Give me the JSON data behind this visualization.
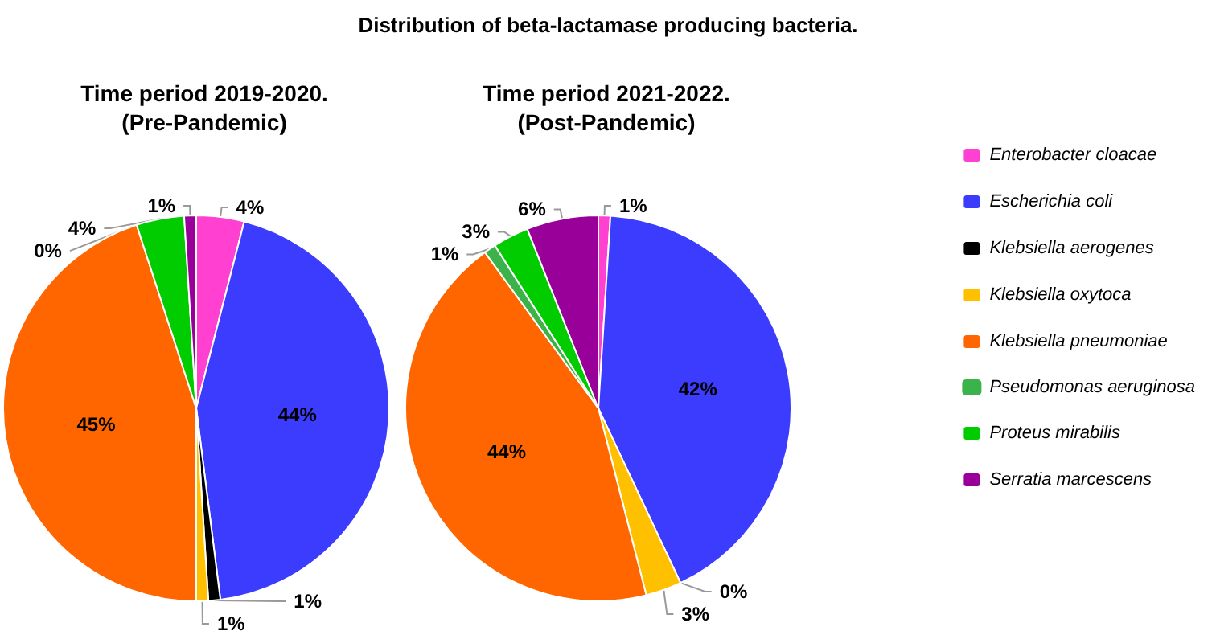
{
  "chart_data": {
    "type": "pie",
    "title": "Distribution of beta-lactamase producing bacteria.",
    "legend": "right",
    "categories": [
      "Enterobacter cloacae",
      "Escherichia coli",
      "Klebsiella aerogenes",
      "Klebsiella oxytoca",
      "Klebsiella pneumoniae",
      "Pseudomonas aeruginosa",
      "Proteus mirabilis",
      "Serratia marcescens"
    ],
    "colors": [
      "#ff40d0",
      "#3c3cff",
      "#000000",
      "#ffc000",
      "#ff6600",
      "#3cb34a",
      "#00cc00",
      "#990099"
    ],
    "series": [
      {
        "name": "Time period 2019-2020.\n(Pre-Pandemic)",
        "values": [
          4,
          44,
          1,
          1,
          45,
          0,
          4,
          1
        ],
        "value_labels": [
          "4%",
          "44%",
          "1%",
          "1%",
          "45%",
          "0%",
          "4%",
          "1%"
        ]
      },
      {
        "name": "Time period 2021-2022.\n(Post-Pandemic)",
        "values": [
          1,
          42,
          0,
          3,
          44,
          1,
          3,
          6
        ],
        "value_labels": [
          "1%",
          "42%",
          "0%",
          "3%",
          "44%",
          "1%",
          "3%",
          "6%"
        ]
      }
    ]
  }
}
